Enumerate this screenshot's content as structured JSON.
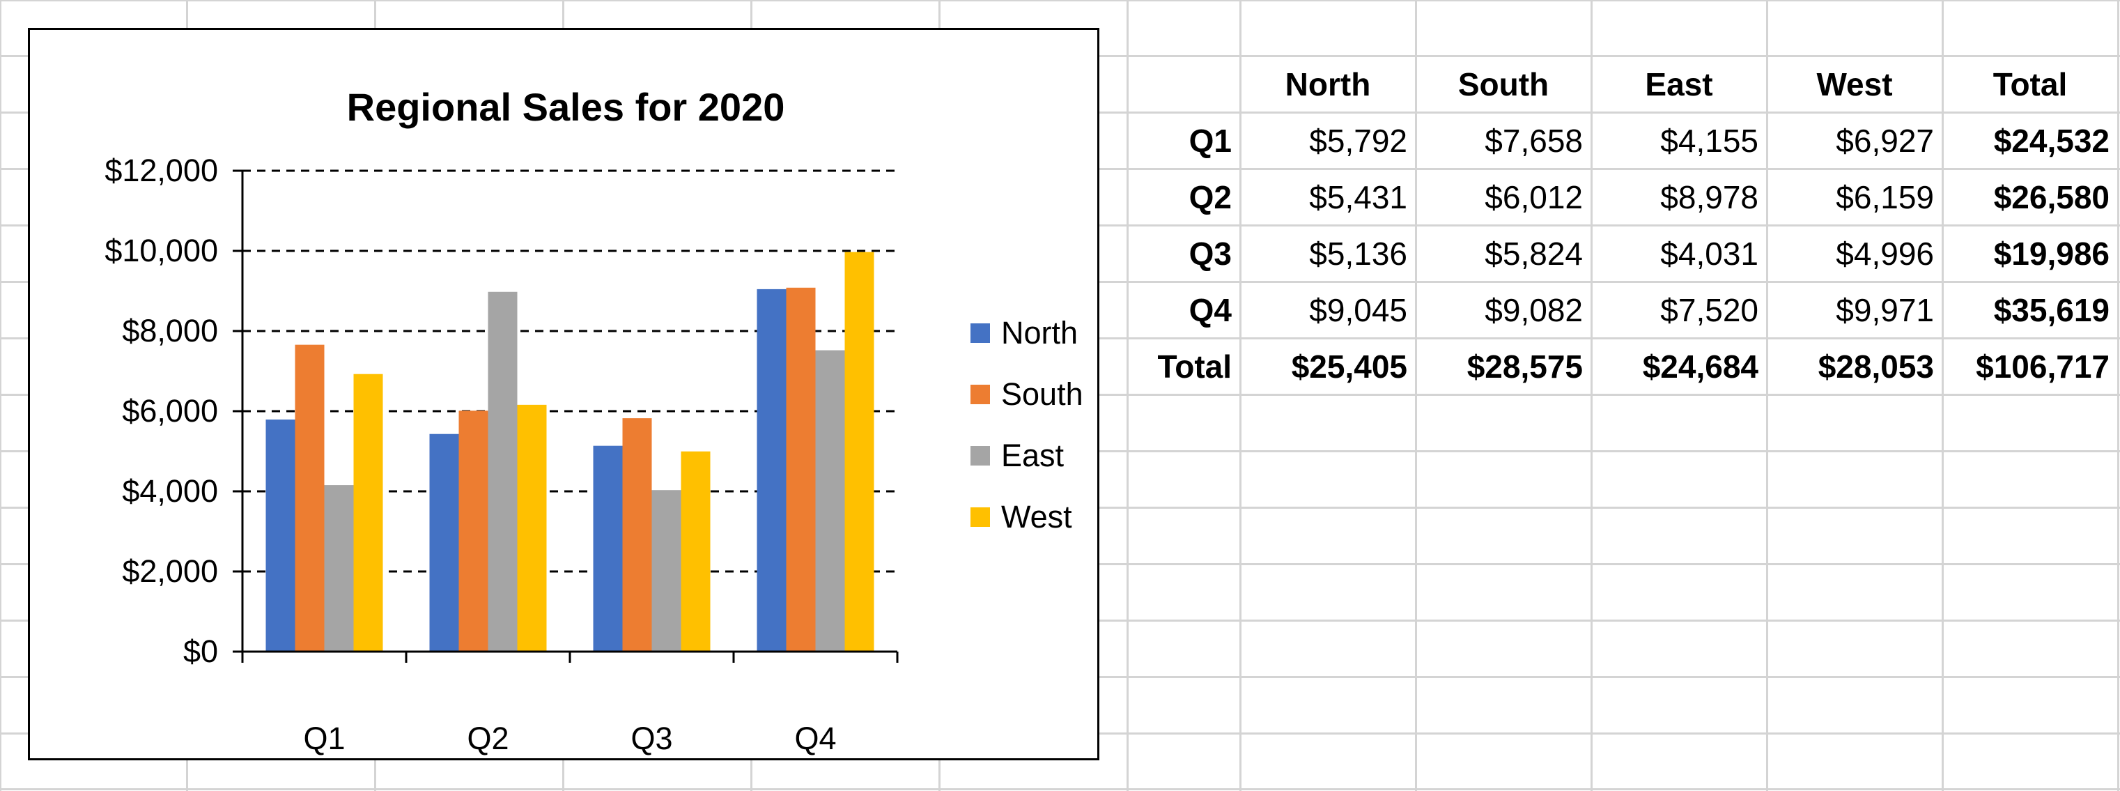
{
  "colors": {
    "north": "#4472C4",
    "south": "#ED7D31",
    "east": "#A5A5A5",
    "west": "#FFC000",
    "gridline": "#000000",
    "sheet_grid": "#D4D4D4"
  },
  "chart_data": {
    "type": "bar",
    "title": "Regional Sales for 2020",
    "xlabel": "",
    "ylabel": "",
    "categories": [
      "Q1",
      "Q2",
      "Q3",
      "Q4"
    ],
    "ylim": [
      0,
      12000
    ],
    "ytick_values": [
      0,
      2000,
      4000,
      6000,
      8000,
      10000,
      12000
    ],
    "ytick_labels": [
      "$0",
      "$2,000",
      "$4,000",
      "$6,000",
      "$8,000",
      "$10,000",
      "$12,000"
    ],
    "grid": "major-y-dashed",
    "legend_position": "right",
    "series": [
      {
        "name": "North",
        "values": [
          5792,
          5431,
          5136,
          9045
        ]
      },
      {
        "name": "South",
        "values": [
          7658,
          6012,
          5824,
          9082
        ]
      },
      {
        "name": "East",
        "values": [
          4155,
          8978,
          4031,
          7520
        ]
      },
      {
        "name": "West",
        "values": [
          6927,
          6159,
          4996,
          9971
        ]
      }
    ]
  },
  "table": {
    "headers": [
      "",
      "North",
      "South",
      "East",
      "West",
      "Total"
    ],
    "rows": [
      {
        "label": "Q1",
        "values": [
          "$5,792",
          "$7,658",
          "$4,155",
          "$6,927"
        ],
        "total": "$24,532"
      },
      {
        "label": "Q2",
        "values": [
          "$5,431",
          "$6,012",
          "$8,978",
          "$6,159"
        ],
        "total": "$26,580"
      },
      {
        "label": "Q3",
        "values": [
          "$5,136",
          "$5,824",
          "$4,031",
          "$4,996"
        ],
        "total": "$19,986"
      },
      {
        "label": "Q4",
        "values": [
          "$9,045",
          "$9,082",
          "$7,520",
          "$9,971"
        ],
        "total": "$35,619"
      }
    ],
    "totals_row": {
      "label": "Total",
      "values": [
        "$25,405",
        "$28,575",
        "$24,684",
        "$28,053"
      ],
      "total": "$106,717"
    }
  }
}
